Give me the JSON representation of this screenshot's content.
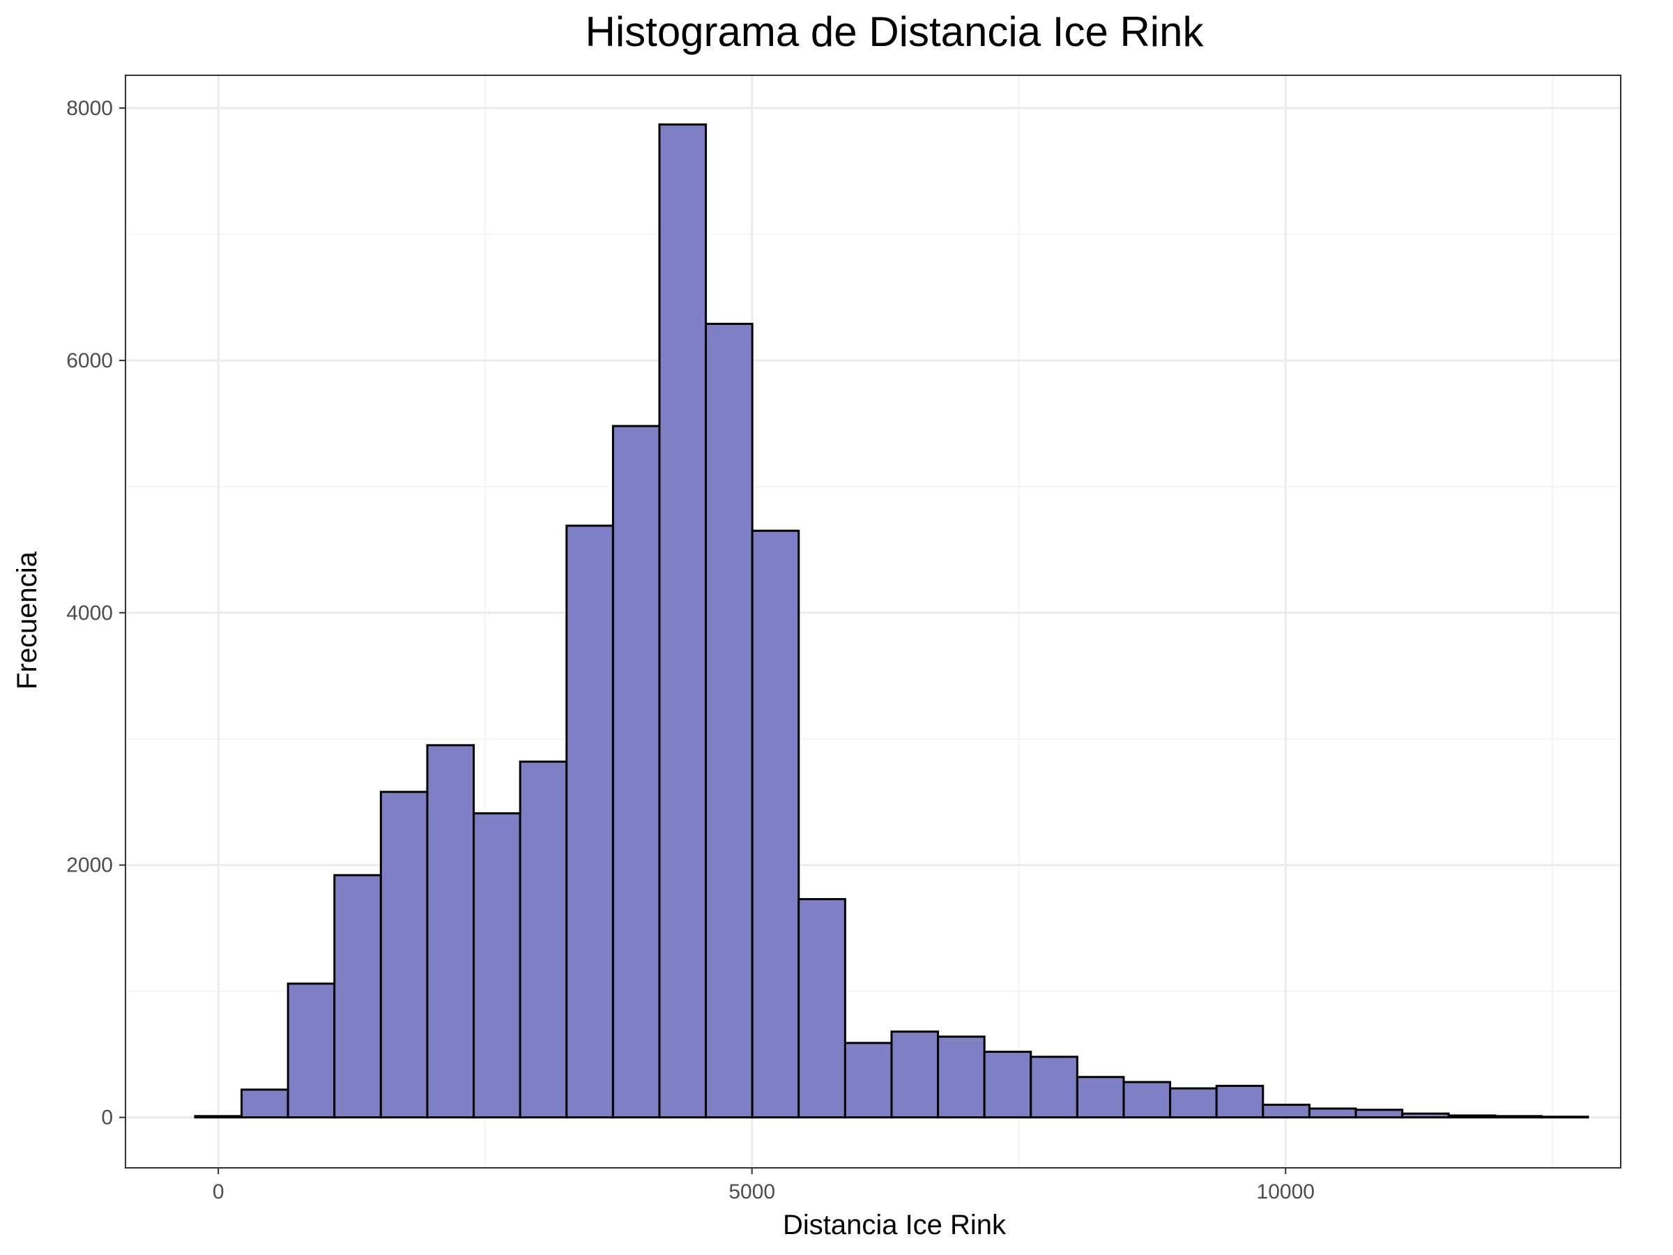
{
  "chart_data": {
    "type": "bar",
    "subtype": "histogram",
    "title": "Histograma de Distancia Ice Rink",
    "xlabel": "Distancia Ice Rink",
    "ylabel": "Frecuencia",
    "xlim": [
      -870,
      13140
    ],
    "ylim": [
      -400,
      8260
    ],
    "x_ticks": [
      0,
      5000,
      10000
    ],
    "y_ticks": [
      0,
      2000,
      4000,
      6000,
      8000
    ],
    "grid": true,
    "bar_fill": "#7f7fc6",
    "bar_edge": "#000000",
    "bin_width": 435,
    "bin_start": -217,
    "values": [
      10,
      220,
      1060,
      1920,
      2580,
      2950,
      2410,
      2820,
      4690,
      5480,
      7870,
      6290,
      4650,
      1730,
      590,
      680,
      640,
      520,
      480,
      320,
      280,
      230,
      250,
      100,
      70,
      60,
      30,
      15,
      10,
      5
    ]
  }
}
